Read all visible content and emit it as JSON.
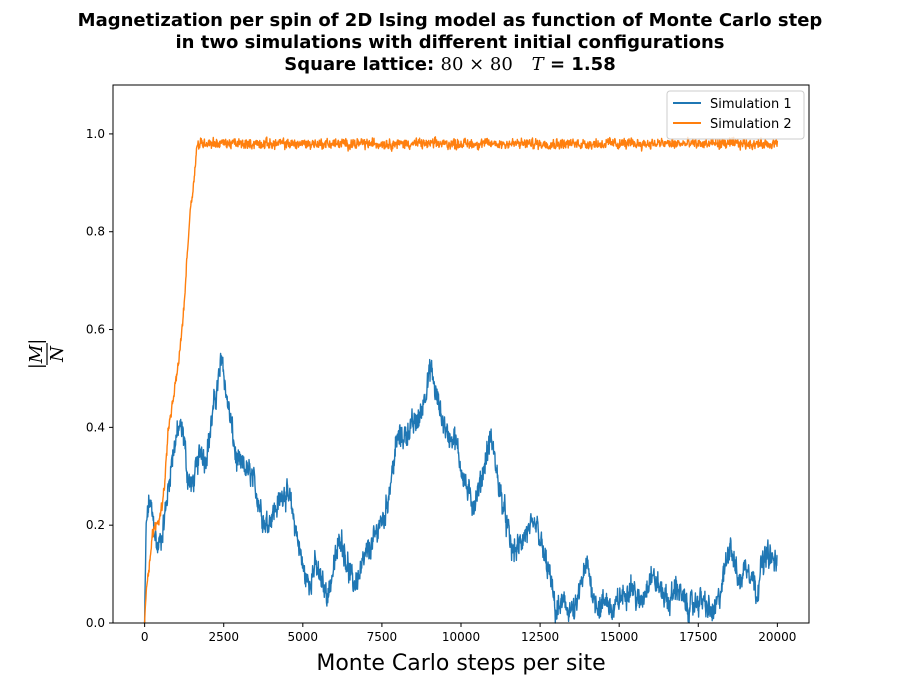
{
  "chart_data": {
    "type": "line",
    "title_lines": [
      "Magnetization per spin of 2D Ising model as function of Monte Carlo step",
      "in two simulations with different initial configurations"
    ],
    "title_line3_prefix": "Square lattice:",
    "title_line3_lattice": "80 × 80",
    "title_line3_temp_symbol": "T",
    "title_line3_temp_value": "= 1.58",
    "xlabel": "Monte Carlo steps per site",
    "ylabel_numerator": "|M|",
    "ylabel_denominator": "N",
    "xlim": [
      -1000,
      21000
    ],
    "ylim": [
      0,
      1.1
    ],
    "xticks": [
      0,
      2500,
      5000,
      7500,
      10000,
      12500,
      15000,
      17500,
      20000
    ],
    "yticks": [
      0.0,
      0.2,
      0.4,
      0.6,
      0.8,
      1.0
    ],
    "grid": false,
    "legend_position": "top-right",
    "series": [
      {
        "name": "Simulation 1",
        "color": "#1f77b4",
        "noise": 0.03,
        "points": [
          [
            0,
            0.0
          ],
          [
            50,
            0.2
          ],
          [
            150,
            0.25
          ],
          [
            250,
            0.22
          ],
          [
            400,
            0.15
          ],
          [
            550,
            0.18
          ],
          [
            700,
            0.25
          ],
          [
            850,
            0.33
          ],
          [
            1000,
            0.38
          ],
          [
            1100,
            0.4
          ],
          [
            1250,
            0.38
          ],
          [
            1350,
            0.3
          ],
          [
            1500,
            0.28
          ],
          [
            1650,
            0.32
          ],
          [
            1800,
            0.36
          ],
          [
            1900,
            0.33
          ],
          [
            2050,
            0.38
          ],
          [
            2200,
            0.45
          ],
          [
            2350,
            0.5
          ],
          [
            2450,
            0.55
          ],
          [
            2550,
            0.48
          ],
          [
            2750,
            0.4
          ],
          [
            2900,
            0.33
          ],
          [
            3100,
            0.32
          ],
          [
            3400,
            0.3
          ],
          [
            3600,
            0.25
          ],
          [
            3800,
            0.2
          ],
          [
            4000,
            0.22
          ],
          [
            4200,
            0.24
          ],
          [
            4400,
            0.27
          ],
          [
            4600,
            0.25
          ],
          [
            4750,
            0.2
          ],
          [
            4900,
            0.15
          ],
          [
            5050,
            0.1
          ],
          [
            5200,
            0.08
          ],
          [
            5400,
            0.12
          ],
          [
            5600,
            0.08
          ],
          [
            5800,
            0.06
          ],
          [
            6000,
            0.12
          ],
          [
            6200,
            0.18
          ],
          [
            6400,
            0.12
          ],
          [
            6600,
            0.08
          ],
          [
            6800,
            0.1
          ],
          [
            7000,
            0.14
          ],
          [
            7200,
            0.16
          ],
          [
            7400,
            0.2
          ],
          [
            7600,
            0.22
          ],
          [
            7800,
            0.3
          ],
          [
            8000,
            0.38
          ],
          [
            8200,
            0.38
          ],
          [
            8400,
            0.4
          ],
          [
            8700,
            0.42
          ],
          [
            8900,
            0.48
          ],
          [
            9050,
            0.52
          ],
          [
            9200,
            0.47
          ],
          [
            9400,
            0.42
          ],
          [
            9600,
            0.38
          ],
          [
            9800,
            0.38
          ],
          [
            10000,
            0.32
          ],
          [
            10200,
            0.27
          ],
          [
            10400,
            0.24
          ],
          [
            10600,
            0.28
          ],
          [
            10800,
            0.34
          ],
          [
            10950,
            0.38
          ],
          [
            11200,
            0.28
          ],
          [
            11400,
            0.22
          ],
          [
            11600,
            0.15
          ],
          [
            11800,
            0.15
          ],
          [
            12000,
            0.18
          ],
          [
            12200,
            0.19
          ],
          [
            12400,
            0.2
          ],
          [
            12600,
            0.14
          ],
          [
            12800,
            0.1
          ],
          [
            13000,
            0.02
          ],
          [
            13200,
            0.04
          ],
          [
            13400,
            0.03
          ],
          [
            13600,
            0.02
          ],
          [
            13800,
            0.08
          ],
          [
            14000,
            0.12
          ],
          [
            14200,
            0.05
          ],
          [
            14400,
            0.03
          ],
          [
            14600,
            0.05
          ],
          [
            14800,
            0.02
          ],
          [
            15000,
            0.05
          ],
          [
            15200,
            0.06
          ],
          [
            15400,
            0.08
          ],
          [
            15600,
            0.04
          ],
          [
            15800,
            0.06
          ],
          [
            16000,
            0.1
          ],
          [
            16200,
            0.08
          ],
          [
            16400,
            0.06
          ],
          [
            16600,
            0.04
          ],
          [
            16800,
            0.08
          ],
          [
            17000,
            0.05
          ],
          [
            17200,
            0.03
          ],
          [
            17400,
            0.04
          ],
          [
            17600,
            0.05
          ],
          [
            17800,
            0.03
          ],
          [
            18000,
            0.02
          ],
          [
            18200,
            0.06
          ],
          [
            18400,
            0.13
          ],
          [
            18500,
            0.17
          ],
          [
            18650,
            0.12
          ],
          [
            18800,
            0.08
          ],
          [
            19000,
            0.12
          ],
          [
            19200,
            0.1
          ],
          [
            19350,
            0.06
          ],
          [
            19500,
            0.12
          ],
          [
            19700,
            0.14
          ],
          [
            20000,
            0.12
          ]
        ]
      },
      {
        "name": "Simulation 2",
        "color": "#ff7f0e",
        "noise": 0.012,
        "points": [
          [
            0,
            0.0
          ],
          [
            60,
            0.08
          ],
          [
            150,
            0.12
          ],
          [
            250,
            0.18
          ],
          [
            350,
            0.2
          ],
          [
            450,
            0.21
          ],
          [
            550,
            0.24
          ],
          [
            650,
            0.3
          ],
          [
            750,
            0.4
          ],
          [
            850,
            0.43
          ],
          [
            950,
            0.48
          ],
          [
            1050,
            0.52
          ],
          [
            1150,
            0.58
          ],
          [
            1250,
            0.65
          ],
          [
            1350,
            0.76
          ],
          [
            1450,
            0.85
          ],
          [
            1550,
            0.9
          ],
          [
            1650,
            0.975
          ],
          [
            1800,
            0.982
          ],
          [
            3000,
            0.98
          ],
          [
            5000,
            0.98
          ],
          [
            7500,
            0.98
          ],
          [
            10000,
            0.98
          ],
          [
            12500,
            0.98
          ],
          [
            15000,
            0.98
          ],
          [
            17500,
            0.98
          ],
          [
            20000,
            0.98
          ]
        ]
      }
    ]
  }
}
